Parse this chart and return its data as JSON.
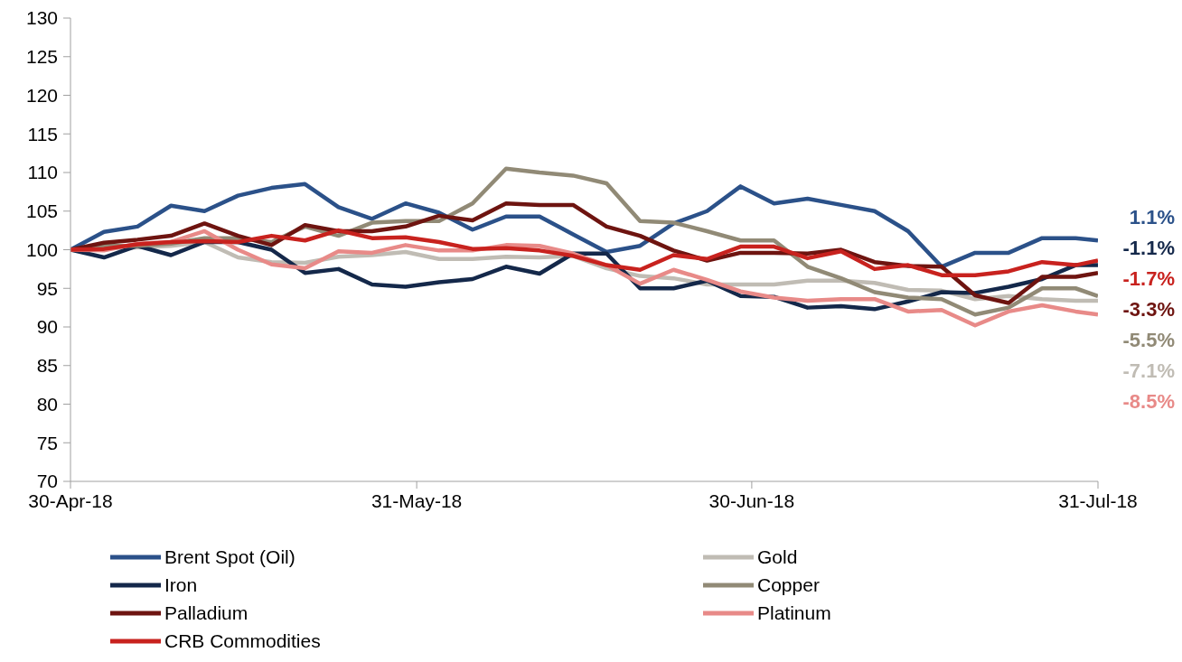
{
  "chart_data": {
    "type": "line",
    "x": [
      "2018-04-30",
      "2018-05-03",
      "2018-05-06",
      "2018-05-09",
      "2018-05-12",
      "2018-05-15",
      "2018-05-18",
      "2018-05-21",
      "2018-05-24",
      "2018-05-27",
      "2018-05-30",
      "2018-06-02",
      "2018-06-05",
      "2018-06-08",
      "2018-06-11",
      "2018-06-14",
      "2018-06-17",
      "2018-06-20",
      "2018-06-23",
      "2018-06-26",
      "2018-06-29",
      "2018-07-02",
      "2018-07-05",
      "2018-07-08",
      "2018-07-11",
      "2018-07-14",
      "2018-07-17",
      "2018-07-20",
      "2018-07-23",
      "2018-07-26",
      "2018-07-29",
      "2018-07-31"
    ],
    "series": [
      {
        "name": "Brent Spot (Oil)",
        "color": "#2b5189",
        "values": [
          100,
          102.3,
          103,
          105.7,
          105,
          107,
          108,
          108.5,
          105.5,
          104,
          106,
          104.8,
          102.6,
          104.3,
          104.3,
          102,
          99.7,
          100.5,
          103.4,
          105,
          108.2,
          106,
          106.6,
          105.8,
          105,
          102.4,
          97.8,
          99.6,
          99.6,
          101.5,
          101.5,
          101.2
        ]
      },
      {
        "name": "Gold",
        "color": "#c0bcb4",
        "values": [
          100,
          100.2,
          100.3,
          100.5,
          101,
          99,
          98.4,
          98.3,
          99.1,
          99.3,
          99.7,
          98.8,
          98.8,
          99.1,
          99,
          99.2,
          97.6,
          96.6,
          96.3,
          95.5,
          95.5,
          95.5,
          96,
          96,
          95.7,
          94.8,
          94.7,
          93.6,
          94,
          93.6,
          93.4,
          93.4
        ]
      },
      {
        "name": "Iron",
        "color": "#14284a",
        "values": [
          100,
          99,
          100.5,
          99.3,
          101,
          101,
          100,
          97,
          97.5,
          95.5,
          95.2,
          95.8,
          96.2,
          97.8,
          96.9,
          99.5,
          99.5,
          95,
          95,
          96,
          94,
          93.9,
          92.5,
          92.7,
          92.3,
          93.3,
          94.5,
          94.4,
          95.2,
          96.2,
          98,
          98
        ]
      },
      {
        "name": "Copper",
        "color": "#918a76",
        "values": [
          100,
          100.5,
          100.5,
          100.8,
          101.5,
          101.5,
          101,
          103,
          101.8,
          103.5,
          103.7,
          103.7,
          106,
          110.5,
          110,
          109.6,
          108.6,
          103.7,
          103.5,
          102.4,
          101.2,
          101.2,
          97.8,
          96.3,
          94.5,
          93.8,
          93.6,
          91.6,
          92.5,
          95,
          95,
          94
        ]
      },
      {
        "name": "Palladium",
        "color": "#6e1410",
        "values": [
          100,
          100.9,
          101.3,
          101.8,
          103.4,
          101.8,
          100.6,
          103.2,
          102.4,
          102.4,
          103,
          104.4,
          103.8,
          106,
          105.8,
          105.8,
          103,
          101.8,
          99.9,
          98.6,
          99.6,
          99.6,
          99.5,
          100,
          98.4,
          97.9,
          97.8,
          94.1,
          93.1,
          96.5,
          96.5,
          97
        ]
      },
      {
        "name": "Platinum",
        "color": "#e88a88",
        "values": [
          100,
          99.9,
          100.8,
          101,
          102.4,
          100,
          98.1,
          97.6,
          99.8,
          99.6,
          100.6,
          99.9,
          99.9,
          100.6,
          100.5,
          99.5,
          98,
          95.6,
          97.4,
          96.1,
          94.6,
          93.8,
          93.4,
          93.6,
          93.6,
          92,
          92.2,
          90.2,
          92,
          92.8,
          92,
          91.6
        ]
      },
      {
        "name": "CRB Commodities",
        "color": "#c8221e",
        "values": [
          100,
          100.1,
          100.7,
          101,
          101.1,
          101,
          101.8,
          101.2,
          102.5,
          101.5,
          101.6,
          101,
          100.1,
          100.2,
          99.9,
          99.2,
          98,
          97.4,
          99.3,
          98.8,
          100.4,
          100.4,
          98.9,
          99.8,
          97.5,
          98,
          96.7,
          96.7,
          97.2,
          98.4,
          98,
          98.6
        ]
      }
    ],
    "ylim": [
      70,
      130
    ],
    "yticks": [
      70,
      75,
      80,
      85,
      90,
      95,
      100,
      105,
      110,
      115,
      120,
      125,
      130
    ],
    "xlim": [
      "2018-04-30",
      "2018-07-31"
    ],
    "xticks": [
      {
        "value": "2018-04-30",
        "label": "30-Apr-18"
      },
      {
        "value": "2018-05-31",
        "label": "31-May-18"
      },
      {
        "value": "2018-06-30",
        "label": "30-Jun-18"
      },
      {
        "value": "2018-07-31",
        "label": "31-Jul-18"
      }
    ],
    "annotations": [
      "1.1%",
      "-1.1%",
      "-1.7%",
      "-3.3%",
      "-5.5%",
      "-7.1%",
      "-8.5%"
    ],
    "grid": false,
    "legend": "bottom",
    "line_style": "solid",
    "marker": "none"
  }
}
